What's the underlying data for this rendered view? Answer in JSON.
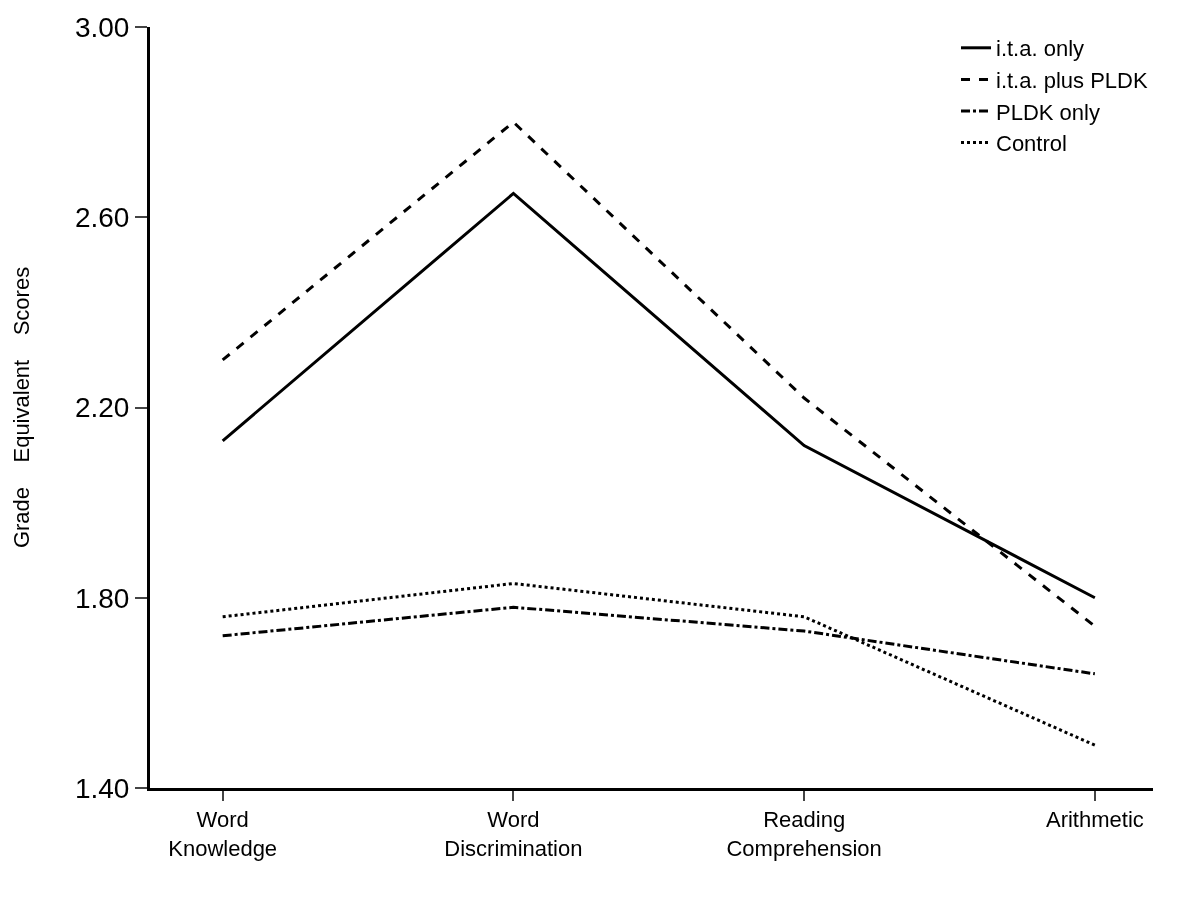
{
  "chart_data": {
    "type": "line",
    "ylabel": "Grade    Equivalent    Scores",
    "categories": [
      "Word\nKnowledge",
      "Word\nDiscrimination",
      "Reading\nComprehension",
      "Arithmetic"
    ],
    "series": [
      {
        "name": "i.t.a. only",
        "color": "#000000",
        "line_style": "solid",
        "values": [
          2.13,
          2.65,
          2.12,
          1.8
        ]
      },
      {
        "name": "i.t.a. plus PLDK",
        "color": "#000000",
        "line_style": "dashed",
        "values": [
          2.3,
          2.8,
          2.22,
          1.74
        ]
      },
      {
        "name": "PLDK only",
        "color": "#000000",
        "line_style": "dashdot",
        "values": [
          1.72,
          1.78,
          1.73,
          1.64
        ]
      },
      {
        "name": "Control",
        "color": "#000000",
        "line_style": "dotted",
        "values": [
          1.76,
          1.83,
          1.76,
          1.49
        ]
      }
    ],
    "ylim": [
      1.4,
      3.0
    ],
    "yticks": [
      {
        "value": 1.4,
        "label": "1.40"
      },
      {
        "value": 1.8,
        "label": "1.80"
      },
      {
        "value": 2.2,
        "label": "2.20"
      },
      {
        "value": 2.6,
        "label": "2.60"
      },
      {
        "value": 3.0,
        "label": "3.00"
      }
    ],
    "legend": "top right",
    "marker": "none"
  }
}
